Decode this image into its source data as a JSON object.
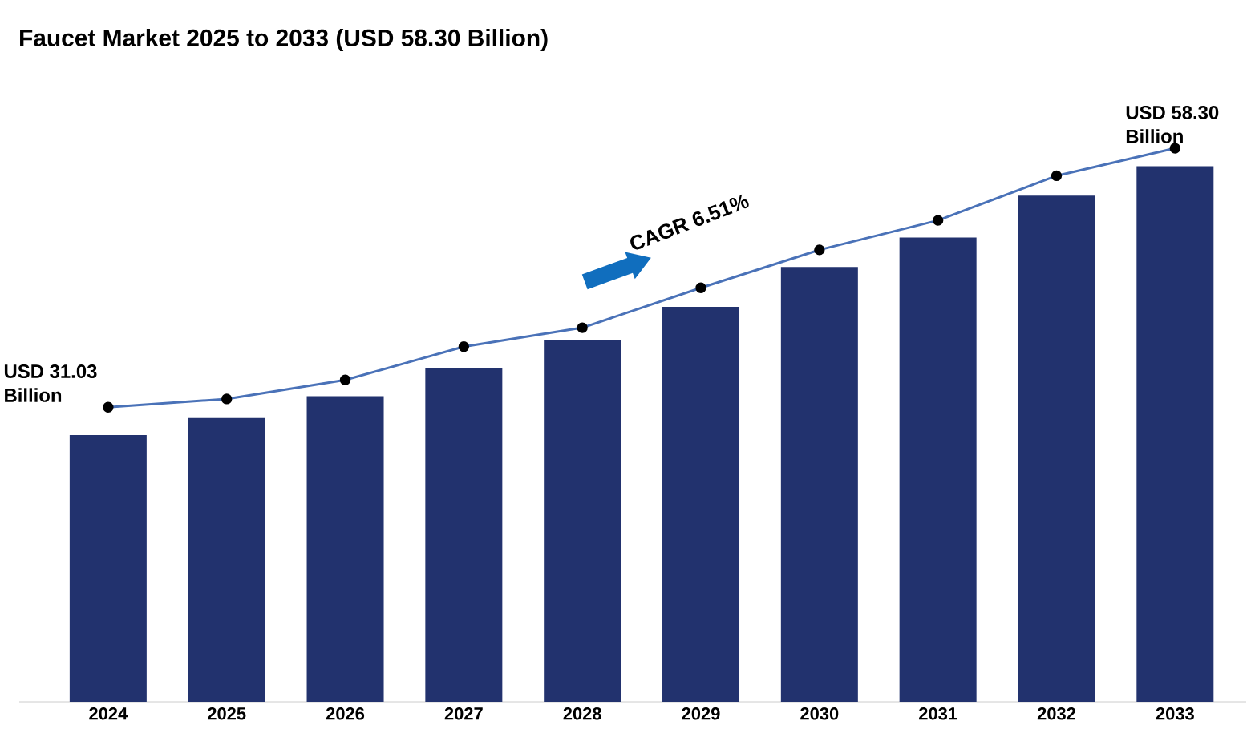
{
  "chart_data": {
    "type": "bar",
    "title": "Faucet Market 2025 to 2033 (USD 58.30 Billion)",
    "categories": [
      "2024",
      "2025",
      "2026",
      "2027",
      "2028",
      "2029",
      "2030",
      "2031",
      "2032",
      "2033"
    ],
    "series": [
      {
        "color": "#22326e",
        "values": [
          28.1,
          29.9,
          32.2,
          35.1,
          38.1,
          41.6,
          45.8,
          48.9,
          53.3,
          56.4
        ]
      },
      {
        "type": "line",
        "color": "#4a72b8",
        "marker": "circle",
        "values": [
          31.03,
          31.9,
          33.9,
          37.4,
          39.4,
          43.6,
          47.6,
          50.7,
          55.4,
          58.3
        ],
        "value_labels": [
          "USD 31.03 Billion",
          null,
          null,
          null,
          null,
          null,
          null,
          null,
          null,
          "USD 58.30 Billion"
        ]
      }
    ],
    "annotations": [
      "CAGR 6.51%"
    ]
  }
}
